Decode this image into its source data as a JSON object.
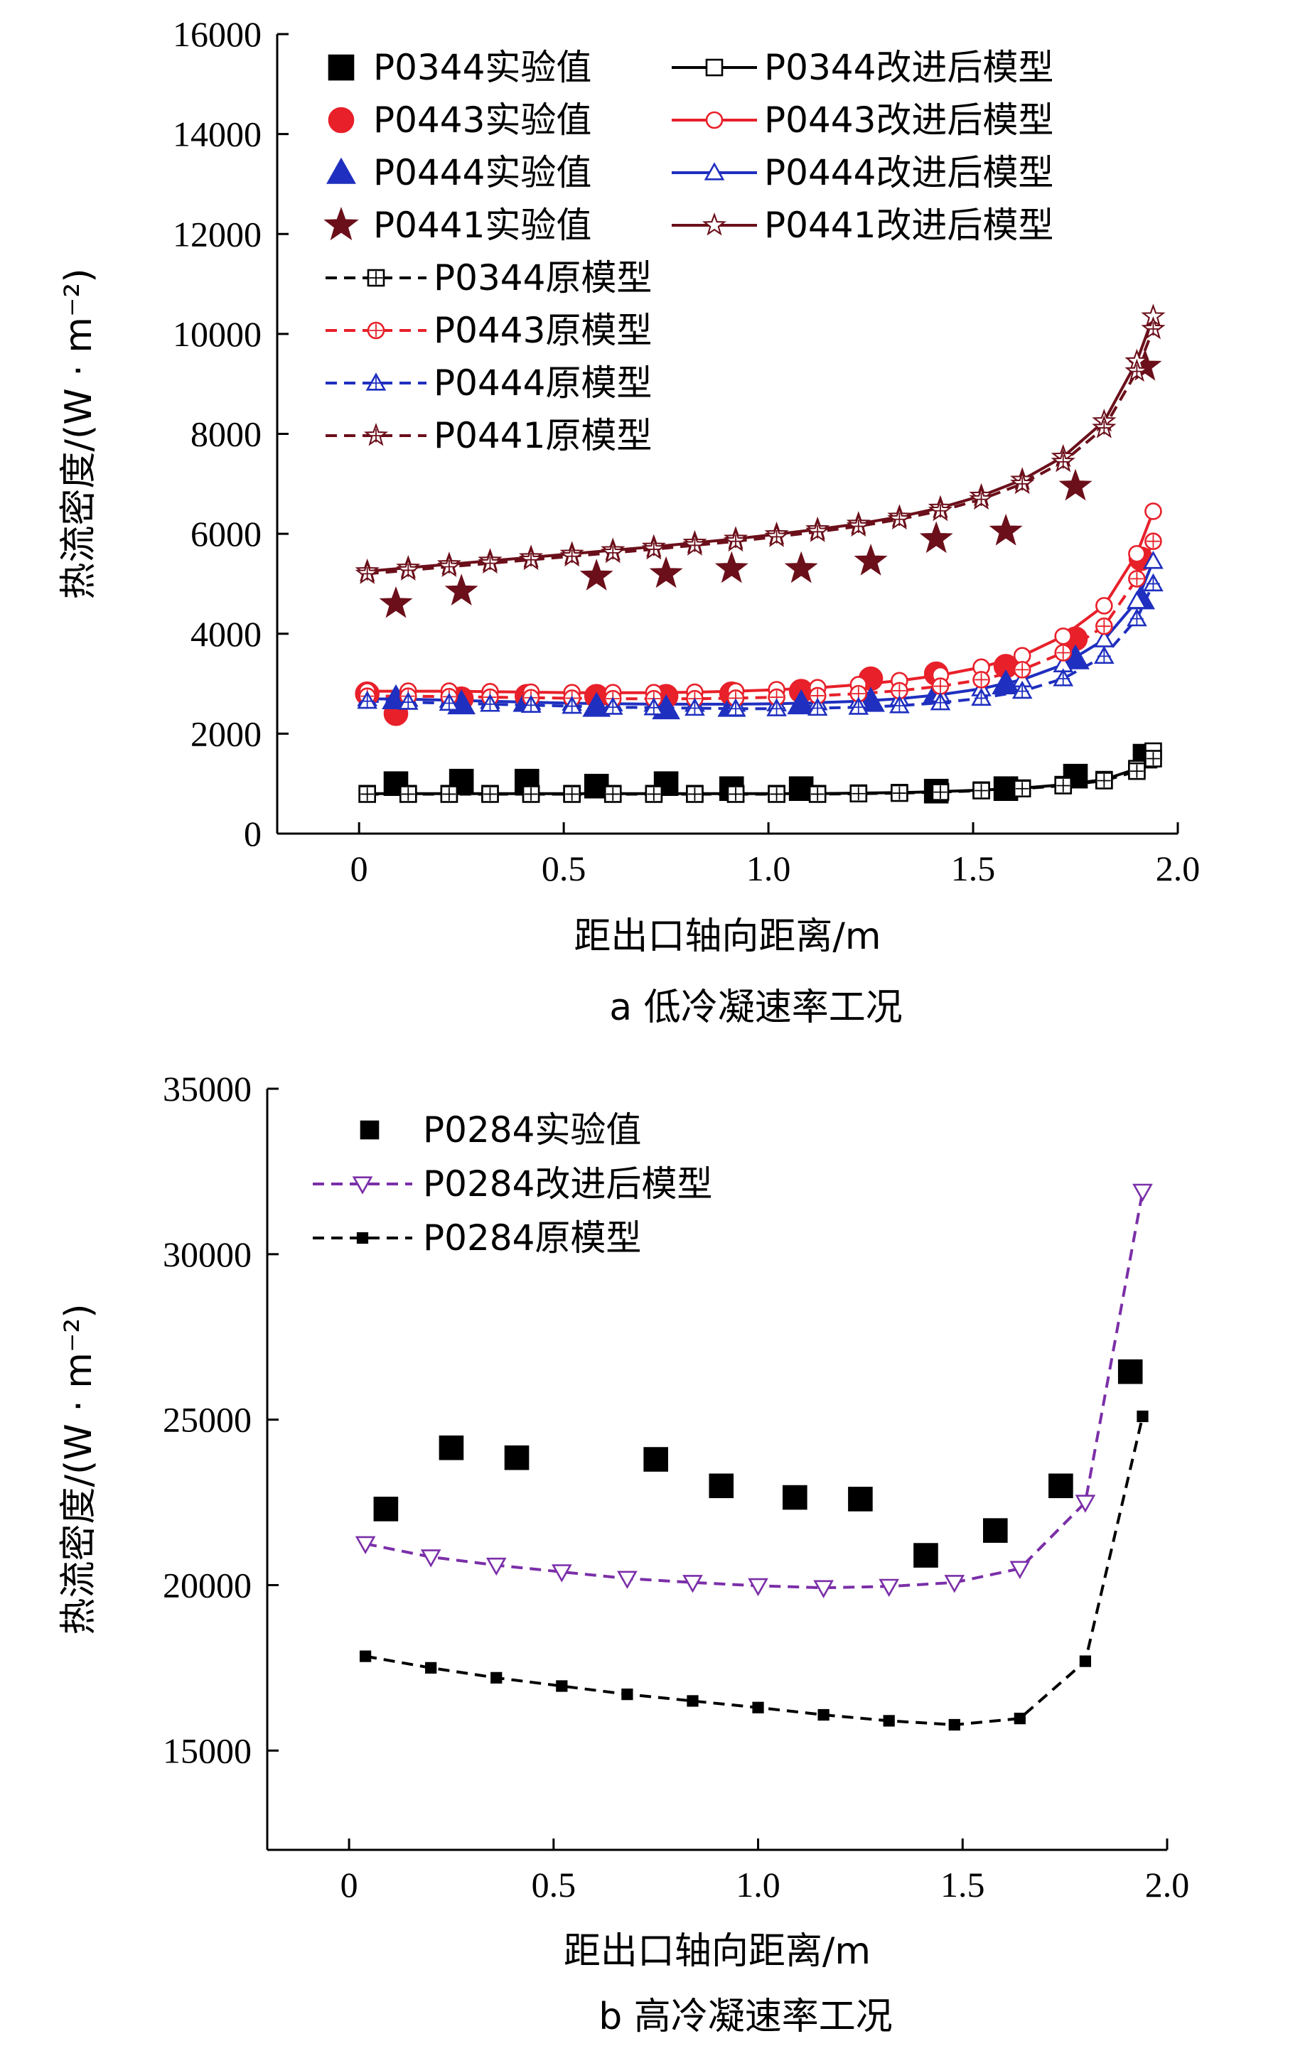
{
  "chart_data": [
    {
      "type": "line",
      "panel": "a",
      "caption": "a 低冷凝速率工况",
      "xlabel": "距出口轴向距离/m",
      "ylabel": "热流密度/(W · m⁻²)",
      "xlim": [
        -0.2,
        2.0
      ],
      "ylim": [
        0,
        16000
      ],
      "xticks": [
        0,
        0.5,
        1.0,
        1.5,
        2.0
      ],
      "xtick_labels": [
        "0",
        "0.5",
        "1.0",
        "1.5",
        "2.0"
      ],
      "yticks": [
        0,
        2000,
        4000,
        6000,
        8000,
        10000,
        12000,
        14000,
        16000
      ],
      "ytick_labels": [
        "0",
        "2000",
        "4000",
        "6000",
        "8000",
        "10000",
        "12000",
        "14000",
        "16000"
      ],
      "legend_position": "top-left",
      "series": [
        {
          "name": "P0344实验值",
          "kind": "experiment",
          "marker": "square-filled",
          "color": "#000000",
          "x": [
            0.09,
            0.25,
            0.41,
            0.58,
            0.75,
            0.91,
            1.08,
            1.41,
            1.58,
            1.75,
            1.92
          ],
          "y": [
            1000,
            1050,
            1050,
            950,
            1000,
            900,
            900,
            850,
            900,
            1150,
            1550
          ]
        },
        {
          "name": "P0443实验值",
          "kind": "experiment",
          "marker": "circle-filled",
          "color": "#e8202a",
          "x": [
            0.02,
            0.09,
            0.25,
            0.41,
            0.58,
            0.75,
            0.91,
            1.08,
            1.25,
            1.41,
            1.58,
            1.75,
            1.91
          ],
          "y": [
            2800,
            2400,
            2700,
            2750,
            2750,
            2750,
            2800,
            2850,
            3100,
            3200,
            3350,
            3900,
            5500
          ]
        },
        {
          "name": "P0444实验值",
          "kind": "experiment",
          "marker": "triangle-filled",
          "color": "#1f2fbf",
          "x": [
            0.09,
            0.25,
            0.41,
            0.58,
            0.75,
            0.91,
            1.08,
            1.25,
            1.41,
            1.58,
            1.75,
            1.91
          ],
          "y": [
            2700,
            2600,
            2650,
            2550,
            2500,
            2550,
            2600,
            2650,
            2800,
            3000,
            3500,
            4700
          ]
        },
        {
          "name": "P0441实验值",
          "kind": "experiment",
          "marker": "star-filled",
          "color": "#6b0f1a",
          "x": [
            0.09,
            0.25,
            0.58,
            0.75,
            0.91,
            1.08,
            1.25,
            1.41,
            1.58,
            1.75,
            1.92
          ],
          "y": [
            4600,
            4850,
            5150,
            5200,
            5300,
            5300,
            5450,
            5900,
            6050,
            6950,
            9350
          ]
        },
        {
          "name": "P0344改进后模型",
          "kind": "improved",
          "marker": "square-open",
          "color": "#000000",
          "dash": "solid",
          "x": [
            0.02,
            0.12,
            0.22,
            0.32,
            0.42,
            0.52,
            0.62,
            0.72,
            0.82,
            0.92,
            1.02,
            1.12,
            1.22,
            1.32,
            1.42,
            1.52,
            1.62,
            1.72,
            1.82,
            1.9,
            1.94
          ],
          "y": [
            800,
            800,
            800,
            800,
            800,
            800,
            800,
            800,
            800,
            800,
            800,
            800,
            810,
            820,
            840,
            870,
            910,
            980,
            1080,
            1300,
            1650
          ]
        },
        {
          "name": "P0443改进后模型",
          "kind": "improved",
          "marker": "circle-open",
          "color": "#e8202a",
          "dash": "solid",
          "x": [
            0.02,
            0.12,
            0.22,
            0.32,
            0.42,
            0.52,
            0.62,
            0.72,
            0.82,
            0.92,
            1.02,
            1.12,
            1.22,
            1.32,
            1.42,
            1.52,
            1.62,
            1.72,
            1.82,
            1.9,
            1.94
          ],
          "y": [
            2850,
            2850,
            2850,
            2840,
            2830,
            2820,
            2820,
            2820,
            2830,
            2850,
            2880,
            2920,
            2980,
            3060,
            3170,
            3330,
            3560,
            3950,
            4560,
            5600,
            6450
          ]
        },
        {
          "name": "P0444改进后模型",
          "kind": "improved",
          "marker": "triangle-open",
          "color": "#1f2fbf",
          "dash": "solid",
          "x": [
            0.02,
            0.12,
            0.22,
            0.32,
            0.42,
            0.52,
            0.62,
            0.72,
            0.82,
            0.92,
            1.02,
            1.12,
            1.22,
            1.32,
            1.42,
            1.52,
            1.62,
            1.72,
            1.82,
            1.9,
            1.94
          ],
          "y": [
            2700,
            2690,
            2670,
            2650,
            2630,
            2610,
            2600,
            2590,
            2590,
            2590,
            2600,
            2620,
            2650,
            2700,
            2780,
            2900,
            3080,
            3380,
            3880,
            4650,
            5450
          ]
        },
        {
          "name": "P0441改进后模型",
          "kind": "improved",
          "marker": "star-open",
          "color": "#6b0f1a",
          "dash": "solid",
          "x": [
            0.02,
            0.12,
            0.22,
            0.32,
            0.42,
            0.52,
            0.62,
            0.72,
            0.82,
            0.92,
            1.02,
            1.12,
            1.22,
            1.32,
            1.42,
            1.52,
            1.62,
            1.72,
            1.82,
            1.9,
            1.94
          ],
          "y": [
            5250,
            5320,
            5390,
            5460,
            5530,
            5600,
            5670,
            5740,
            5820,
            5900,
            5990,
            6090,
            6200,
            6340,
            6520,
            6760,
            7080,
            7540,
            8250,
            9450,
            10350
          ]
        },
        {
          "name": "P0344原模型",
          "kind": "original",
          "marker": "square-plus",
          "color": "#000000",
          "dash": "dashed",
          "x": [
            0.02,
            0.12,
            0.22,
            0.32,
            0.42,
            0.52,
            0.62,
            0.72,
            0.82,
            0.92,
            1.02,
            1.12,
            1.22,
            1.32,
            1.42,
            1.52,
            1.62,
            1.72,
            1.82,
            1.9,
            1.94
          ],
          "y": [
            790,
            790,
            790,
            790,
            790,
            790,
            790,
            790,
            790,
            790,
            790,
            790,
            800,
            810,
            830,
            860,
            900,
            960,
            1060,
            1250,
            1500
          ]
        },
        {
          "name": "P0443原模型",
          "kind": "original",
          "marker": "circle-plus",
          "color": "#e8202a",
          "dash": "dashed",
          "x": [
            0.02,
            0.12,
            0.22,
            0.32,
            0.42,
            0.52,
            0.62,
            0.72,
            0.82,
            0.92,
            1.02,
            1.12,
            1.22,
            1.32,
            1.42,
            1.52,
            1.62,
            1.72,
            1.82,
            1.9,
            1.94
          ],
          "y": [
            2750,
            2750,
            2740,
            2730,
            2720,
            2710,
            2700,
            2700,
            2700,
            2710,
            2730,
            2760,
            2800,
            2860,
            2950,
            3080,
            3280,
            3620,
            4150,
            5100,
            5850
          ]
        },
        {
          "name": "P0444原模型",
          "kind": "original",
          "marker": "triangle-plus",
          "color": "#1f2fbf",
          "dash": "dashed",
          "x": [
            0.02,
            0.12,
            0.22,
            0.32,
            0.42,
            0.52,
            0.62,
            0.72,
            0.82,
            0.92,
            1.02,
            1.12,
            1.22,
            1.32,
            1.42,
            1.52,
            1.62,
            1.72,
            1.82,
            1.9,
            1.94
          ],
          "y": [
            2650,
            2630,
            2610,
            2590,
            2570,
            2550,
            2530,
            2520,
            2510,
            2500,
            2500,
            2510,
            2530,
            2560,
            2620,
            2710,
            2850,
            3100,
            3550,
            4300,
            5000
          ]
        },
        {
          "name": "P0441原模型",
          "kind": "original",
          "marker": "star-plus",
          "color": "#6b0f1a",
          "dash": "dashed",
          "x": [
            0.02,
            0.12,
            0.22,
            0.32,
            0.42,
            0.52,
            0.62,
            0.72,
            0.82,
            0.92,
            1.02,
            1.12,
            1.22,
            1.32,
            1.42,
            1.52,
            1.62,
            1.72,
            1.82,
            1.9,
            1.94
          ],
          "y": [
            5200,
            5270,
            5340,
            5410,
            5480,
            5550,
            5620,
            5690,
            5770,
            5850,
            5940,
            6040,
            6150,
            6290,
            6460,
            6690,
            7000,
            7440,
            8120,
            9250,
            10100
          ]
        }
      ]
    },
    {
      "type": "line",
      "panel": "b",
      "caption": "b 高冷凝速率工况",
      "xlabel": "距出口轴向距离/m",
      "ylabel": "热流密度/(W · m⁻²)",
      "xlim": [
        -0.2,
        2.0
      ],
      "ylim": [
        12000,
        35000
      ],
      "xticks": [
        0,
        0.5,
        1.0,
        1.5,
        2.0
      ],
      "xtick_labels": [
        "0",
        "0.5",
        "1.0",
        "1.5",
        "2.0"
      ],
      "yticks": [
        15000,
        20000,
        25000,
        30000,
        35000
      ],
      "ytick_labels": [
        "15000",
        "20000",
        "25000",
        "30000",
        "35000"
      ],
      "legend_position": "top-left",
      "series": [
        {
          "name": "P0284实验值",
          "kind": "experiment",
          "marker": "square-filled",
          "color": "#000000",
          "x": [
            0.09,
            0.25,
            0.41,
            0.75,
            0.91,
            1.09,
            1.25,
            1.41,
            1.58,
            1.74,
            1.91
          ],
          "y": [
            22300,
            24150,
            23850,
            23800,
            23000,
            22650,
            22600,
            20900,
            21650,
            23000,
            26450
          ]
        },
        {
          "name": "P0284改进后模型",
          "kind": "improved",
          "marker": "triangle-down-open",
          "color": "#7b2fa8",
          "dash": "dashed",
          "x": [
            0.04,
            0.2,
            0.36,
            0.52,
            0.68,
            0.84,
            1.0,
            1.16,
            1.32,
            1.48,
            1.64,
            1.8,
            1.94
          ],
          "y": [
            21250,
            20850,
            20600,
            20400,
            20200,
            20080,
            19980,
            19920,
            19960,
            20080,
            20500,
            22500,
            31900
          ]
        },
        {
          "name": "P0284原模型",
          "kind": "original",
          "marker": "square-small-filled",
          "color": "#000000",
          "dash": "dashed",
          "x": [
            0.04,
            0.2,
            0.36,
            0.52,
            0.68,
            0.84,
            1.0,
            1.16,
            1.32,
            1.48,
            1.64,
            1.8,
            1.94
          ],
          "y": [
            17850,
            17500,
            17200,
            16950,
            16700,
            16500,
            16300,
            16080,
            15900,
            15780,
            15970,
            17700,
            25100
          ]
        }
      ]
    }
  ]
}
